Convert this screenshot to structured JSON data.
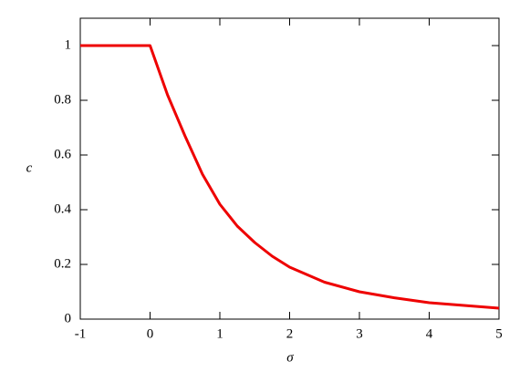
{
  "chart_data": {
    "type": "line",
    "x_label": "σ",
    "y_label": "c",
    "x": [
      -1,
      0,
      0.25,
      0.5,
      0.75,
      1,
      1.25,
      1.5,
      1.75,
      2,
      2.5,
      3,
      3.5,
      4,
      4.5,
      5
    ],
    "values": [
      1,
      1,
      0.82,
      0.67,
      0.53,
      0.42,
      0.34,
      0.28,
      0.23,
      0.19,
      0.135,
      0.1,
      0.078,
      0.06,
      0.05,
      0.04
    ],
    "color": "#ee0000",
    "xlim": [
      -1,
      5
    ],
    "xticks": [
      -1,
      0,
      1,
      2,
      3,
      4,
      5
    ],
    "ylim": [
      0,
      1.1
    ],
    "yticks": [
      0,
      0.2,
      0.4,
      0.6,
      0.8,
      1
    ]
  }
}
